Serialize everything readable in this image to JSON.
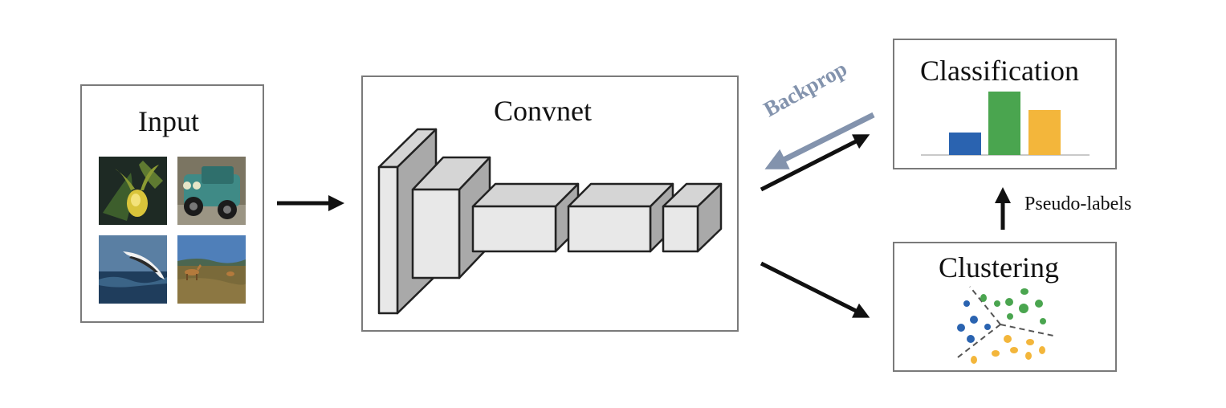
{
  "input": {
    "title": "Input"
  },
  "convnet": {
    "title": "Convnet"
  },
  "classification": {
    "title": "Classification"
  },
  "clustering": {
    "title": "Clustering"
  },
  "arrows": {
    "backprop_label": "Backprop",
    "pseudo_labels": "Pseudo-labels"
  },
  "colors": {
    "blue": "#2a63b0",
    "green": "#4aa54f",
    "yellow": "#f3b63b",
    "backprop": "#8393ad",
    "arrow": "#111111",
    "block_face": "#e8e8e8",
    "block_side": "#a9a9a9"
  }
}
